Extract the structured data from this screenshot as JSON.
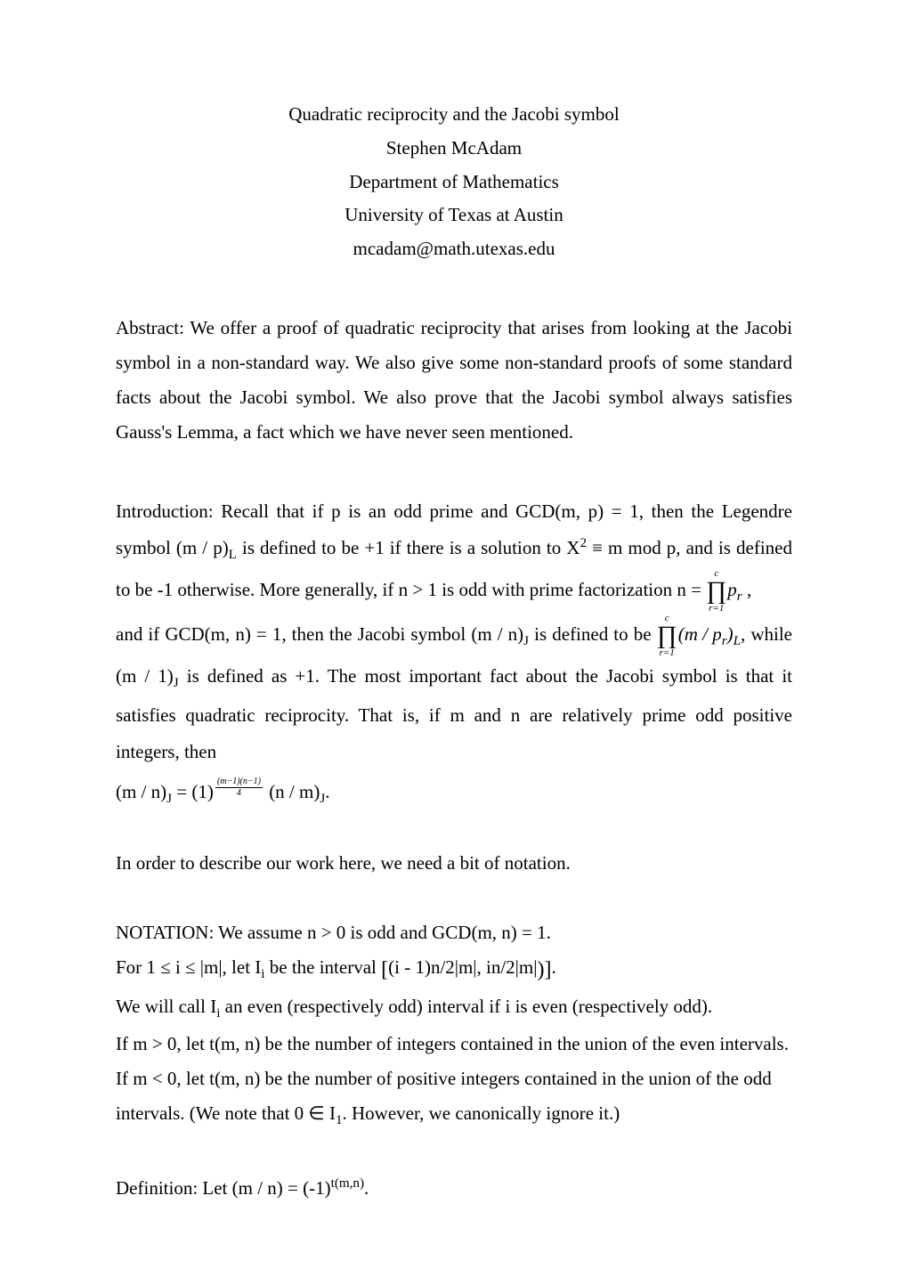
{
  "header": {
    "title": "Quadratic reciprocity and the Jacobi symbol",
    "author": "Stephen McAdam",
    "dept": "Department of Mathematics",
    "univ": "University of Texas at Austin",
    "email": "mcadam@math.utexas.edu"
  },
  "abstract": {
    "text": "Abstract:  We offer a proof of quadratic reciprocity that arises from looking at the Jacobi symbol in a non-standard way.  We also give some non-standard proofs of some standard facts about the Jacobi symbol.  We also prove that the Jacobi symbol always satisfies Gauss's Lemma, a fact which we have never seen mentioned."
  },
  "intro": {
    "p1a": "Introduction:  Recall that if p is an odd prime and GCD(m, p) = 1, then the Legendre symbol (m / p)",
    "p1b": " is defined to be +1 if there is a solution to X",
    "p1c": " ≡ m mod p, and is defined to be -1 otherwise.  More generally, if n > 1 is odd with prime factorization n = ",
    "prod1_top": "c",
    "prod1_bot": "r=1",
    "prod1_arg_base": "p",
    "prod1_arg_sub": "r",
    "p2a": "and if GCD(m, n) = 1, then the Jacobi symbol (m / n)",
    "p2b": " is defined to be ",
    "prod2_top": "c",
    "prod2_bot": "r=1",
    "prod2_arg_a": "(m / p",
    "prod2_arg_b": ")",
    "p2c": ", while ",
    "p3a": "(m / 1)",
    "p3b": " is defined as +1.  The most important fact about the Jacobi symbol is that it satisfies quadratic reciprocity.   That is, if m and n are relatively prime odd positive integers, then",
    "qr_a": "(m / n)",
    "qr_b": " = (1)",
    "qr_exp_num": "(m−1)(n−1)",
    "qr_exp_den": "4",
    "qr_c": " (n / m)",
    "qr_end": "."
  },
  "mid": {
    "text": "In order to describe our work here, we need a bit of notation."
  },
  "notation": {
    "n1": "NOTATION:  We assume n > 0 is odd and GCD(m, n) = 1.",
    "n2a": "For 1 ≤ i ≤ |m|, let I",
    "n2b": " be the interval ",
    "n2c": "(i - 1)n/2|m|,   in/2|m|",
    "n2end": ".",
    "n3a": "We will call I",
    "n3b": " an even (respectively odd) interval if i is even (respectively odd).",
    "n4": "If m > 0, let t(m, n) be the number of integers contained in the union of the even intervals.",
    "n5": "If m < 0, let t(m, n) be the number of positive integers contained in the union of the odd",
    "n6": "intervals.  (We note that 0 ∈ I",
    "n6b": ".  However, we canonically ignore it.)"
  },
  "def": {
    "text": "Definition:  Let (m / n) = (-1)",
    "exp": "t(m,n)",
    "end": "."
  }
}
